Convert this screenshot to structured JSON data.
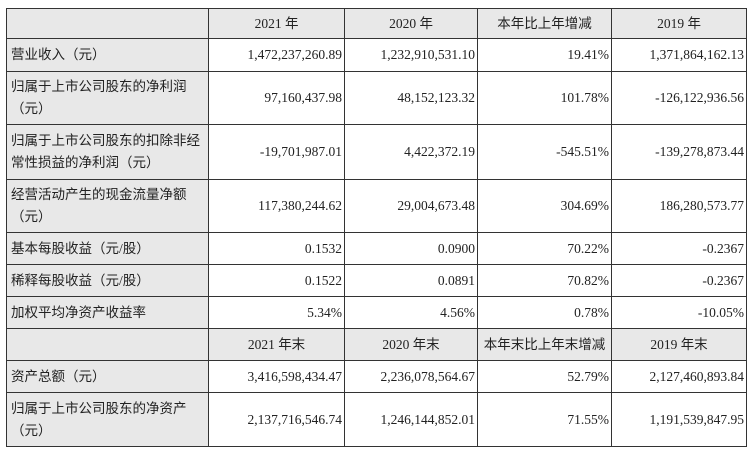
{
  "header1": [
    "",
    "2021 年",
    "2020 年",
    "本年比上年增减",
    "2019 年"
  ],
  "rows1": [
    {
      "label": "营业收入（元）",
      "values": [
        "1,472,237,260.89",
        "1,232,910,531.10",
        "19.41%",
        "1,371,864,162.13"
      ]
    },
    {
      "label": "归属于上市公司股东的净利润（元）",
      "values": [
        "97,160,437.98",
        "48,152,123.32",
        "101.78%",
        "-126,122,936.56"
      ]
    },
    {
      "label": "归属于上市公司股东的扣除非经常性损益的净利润（元）",
      "values": [
        "-19,701,987.01",
        "4,422,372.19",
        "-545.51%",
        "-139,278,873.44"
      ]
    },
    {
      "label": "经营活动产生的现金流量净额（元）",
      "values": [
        "117,380,244.62",
        "29,004,673.48",
        "304.69%",
        "186,280,573.77"
      ]
    },
    {
      "label": "基本每股收益（元/股）",
      "values": [
        "0.1532",
        "0.0900",
        "70.22%",
        "-0.2367"
      ]
    },
    {
      "label": "稀释每股收益（元/股）",
      "values": [
        "0.1522",
        "0.0891",
        "70.82%",
        "-0.2367"
      ]
    },
    {
      "label": "加权平均净资产收益率",
      "values": [
        "5.34%",
        "4.56%",
        "0.78%",
        "-10.05%"
      ]
    }
  ],
  "header2": [
    "",
    "2021 年末",
    "2020 年末",
    "本年末比上年末增减",
    "2019 年末"
  ],
  "rows2": [
    {
      "label": "资产总额（元）",
      "values": [
        "3,416,598,434.47",
        "2,236,078,564.67",
        "52.79%",
        "2,127,460,893.84"
      ]
    },
    {
      "label": "归属于上市公司股东的净资产（元）",
      "values": [
        "2,137,716,546.74",
        "1,246,144,852.01",
        "71.55%",
        "1,191,539,847.95"
      ]
    }
  ]
}
